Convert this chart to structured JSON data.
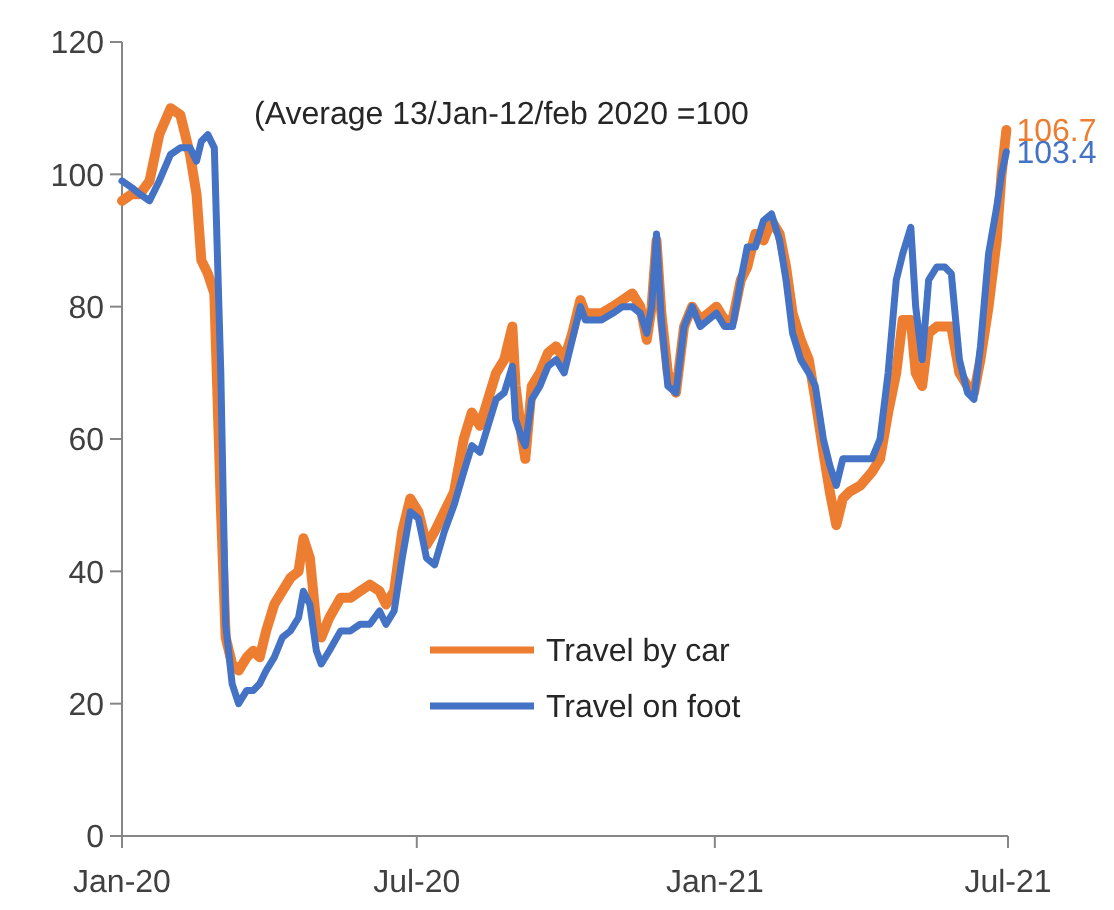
{
  "chart_data": {
    "type": "line",
    "annotations": [
      "(Average 13/Jan-12/feb 2020 =100"
    ],
    "x": [
      "2020-01-01",
      "2020-01-07",
      "2020-01-12",
      "2020-01-18",
      "2020-01-24",
      "2020-01-31",
      "2020-02-06",
      "2020-02-12",
      "2020-02-16",
      "2020-02-19",
      "2020-02-23",
      "2020-02-27",
      "2020-03-02",
      "2020-03-05",
      "2020-03-09",
      "2020-03-13",
      "2020-03-18",
      "2020-03-22",
      "2020-03-26",
      "2020-03-30",
      "2020-04-04",
      "2020-04-09",
      "2020-04-14",
      "2020-04-19",
      "2020-04-22",
      "2020-04-26",
      "2020-04-30",
      "2020-05-03",
      "2020-05-08",
      "2020-05-15",
      "2020-05-21",
      "2020-05-27",
      "2020-06-02",
      "2020-06-08",
      "2020-06-12",
      "2020-06-17",
      "2020-06-22",
      "2020-06-27",
      "2020-07-02",
      "2020-07-07",
      "2020-07-12",
      "2020-07-18",
      "2020-07-24",
      "2020-07-30",
      "2020-08-04",
      "2020-08-09",
      "2020-08-14",
      "2020-08-19",
      "2020-08-24",
      "2020-08-29",
      "2020-08-31",
      "2020-09-04",
      "2020-09-06",
      "2020-09-10",
      "2020-09-15",
      "2020-09-20",
      "2020-09-25",
      "2020-09-30",
      "2020-10-05",
      "2020-10-10",
      "2020-10-13",
      "2020-10-18",
      "2020-10-23",
      "2020-10-30",
      "2020-11-05",
      "2020-11-11",
      "2020-11-16",
      "2020-11-20",
      "2020-11-23",
      "2020-11-26",
      "2020-11-29",
      "2020-12-03",
      "2020-12-08",
      "2020-12-13",
      "2020-12-18",
      "2020-12-23",
      "2020-12-28",
      "2021-01-02",
      "2021-01-07",
      "2021-01-12",
      "2021-01-17",
      "2021-01-21",
      "2021-01-26",
      "2021-01-31",
      "2021-02-05",
      "2021-02-10",
      "2021-02-14",
      "2021-02-18",
      "2021-02-23",
      "2021-02-28",
      "2021-03-04",
      "2021-03-09",
      "2021-03-13",
      "2021-03-17",
      "2021-03-21",
      "2021-03-25",
      "2021-04-01",
      "2021-04-08",
      "2021-04-13",
      "2021-04-18",
      "2021-04-23",
      "2021-04-27",
      "2021-05-02",
      "2021-05-05",
      "2021-05-09",
      "2021-05-13",
      "2021-05-18",
      "2021-05-23",
      "2021-05-27",
      "2021-06-01",
      "2021-06-06",
      "2021-06-10",
      "2021-06-14",
      "2021-06-19",
      "2021-06-24",
      "2021-06-27",
      "2021-06-30"
    ],
    "series": [
      {
        "name": "Travel by car",
        "color": "#ed7d31",
        "values": [
          96,
          97,
          97,
          99,
          106,
          110,
          109,
          103,
          97,
          87,
          85,
          82,
          50,
          30,
          26,
          25,
          27,
          28,
          27,
          31,
          35,
          37,
          39,
          40,
          45,
          42,
          32,
          30,
          33,
          36,
          36,
          37,
          38,
          37,
          35,
          37,
          46,
          51,
          49,
          44,
          46,
          49,
          52,
          60,
          64,
          62,
          66,
          70,
          72,
          77,
          68,
          60,
          57,
          68,
          70,
          73,
          74,
          72,
          76,
          81,
          79,
          79,
          79,
          80,
          81,
          82,
          80,
          75,
          80,
          90,
          79,
          70,
          67,
          77,
          80,
          78,
          79,
          80,
          78,
          78,
          84,
          86,
          91,
          90,
          93,
          91,
          86,
          79,
          75,
          72,
          66,
          58,
          52,
          47,
          51,
          52,
          53,
          55,
          57,
          64,
          70,
          78,
          78,
          70,
          68,
          76,
          77,
          77,
          77,
          70,
          68,
          67,
          72,
          80,
          90,
          100,
          106.7
        ],
        "value_labels": [
          null,
          null,
          null,
          null,
          null,
          null,
          null,
          null,
          null,
          null,
          null,
          null,
          null,
          null,
          null,
          null,
          null,
          null,
          null,
          null,
          null,
          null,
          null,
          null,
          null,
          null,
          null,
          null,
          null,
          null,
          null,
          null,
          null,
          null,
          null,
          null,
          null,
          null,
          null,
          null,
          null,
          null,
          null,
          null,
          null,
          null,
          null,
          null,
          null,
          null,
          null,
          null,
          null,
          null,
          null,
          null,
          null,
          null,
          null,
          null,
          null,
          null,
          null,
          null,
          null,
          null,
          null,
          null,
          null,
          null,
          null,
          null,
          null,
          null,
          null,
          null,
          null,
          null,
          null,
          null,
          null,
          null,
          null,
          null,
          null,
          null,
          null,
          null,
          null,
          null,
          null,
          null,
          null,
          null,
          null,
          null,
          null,
          null,
          null,
          null,
          null,
          null,
          null,
          null,
          null,
          null,
          null,
          null,
          null,
          null,
          null,
          null,
          null,
          null,
          null,
          null,
          "106.7"
        ]
      },
      {
        "name": "Travel on foot",
        "color": "#4472c4",
        "values": [
          99,
          98,
          97,
          96,
          99,
          103,
          104,
          104,
          102,
          105,
          106,
          104,
          70,
          32,
          23,
          20,
          22,
          22,
          23,
          25,
          27,
          30,
          31,
          33,
          37,
          35,
          28,
          26,
          28,
          31,
          31,
          32,
          32,
          34,
          32,
          34,
          42,
          49,
          48,
          42,
          41,
          46,
          50,
          55,
          59,
          58,
          62,
          66,
          67,
          71,
          63,
          60,
          59,
          66,
          68,
          71,
          72,
          70,
          75,
          80,
          78,
          78,
          78,
          79,
          80,
          80,
          79,
          76,
          80,
          91,
          78,
          68,
          67,
          77,
          80,
          77,
          78,
          79,
          77,
          77,
          84,
          89,
          89,
          93,
          94,
          90,
          84,
          76,
          72,
          70,
          68,
          60,
          56,
          53,
          57,
          57,
          57,
          57,
          60,
          70,
          84,
          88,
          92,
          80,
          72,
          84,
          86,
          86,
          85,
          72,
          67,
          66,
          74,
          88,
          95,
          100,
          103.4
        ],
        "value_labels": [
          null,
          null,
          null,
          null,
          null,
          null,
          null,
          null,
          null,
          null,
          null,
          null,
          null,
          null,
          null,
          null,
          null,
          null,
          null,
          null,
          null,
          null,
          null,
          null,
          null,
          null,
          null,
          null,
          null,
          null,
          null,
          null,
          null,
          null,
          null,
          null,
          null,
          null,
          null,
          null,
          null,
          null,
          null,
          null,
          null,
          null,
          null,
          null,
          null,
          null,
          null,
          null,
          null,
          null,
          null,
          null,
          null,
          null,
          null,
          null,
          null,
          null,
          null,
          null,
          null,
          null,
          null,
          null,
          null,
          null,
          null,
          null,
          null,
          null,
          null,
          null,
          null,
          null,
          null,
          null,
          null,
          null,
          null,
          null,
          null,
          null,
          null,
          null,
          null,
          null,
          null,
          null,
          null,
          null,
          null,
          null,
          null,
          null,
          null,
          null,
          null,
          null,
          null,
          null,
          null,
          null,
          null,
          null,
          null,
          null,
          null,
          null,
          null,
          null,
          null,
          null,
          "103.4"
        ]
      }
    ],
    "xlim": [
      "2020-01-01",
      "2021-07-01"
    ],
    "xticks": [
      {
        "value": "2020-01",
        "label": "Jan-20"
      },
      {
        "value": "2020-07",
        "label": "Jul-20"
      },
      {
        "value": "2021-01",
        "label": "Jan-21"
      },
      {
        "value": "2021-07",
        "label": "Jul-21"
      }
    ],
    "ylim": [
      0,
      120
    ],
    "yticks": [
      0,
      20,
      40,
      60,
      80,
      100,
      120
    ],
    "legend": "bottom",
    "grid": false,
    "marker": "none",
    "line_style": "solid"
  }
}
